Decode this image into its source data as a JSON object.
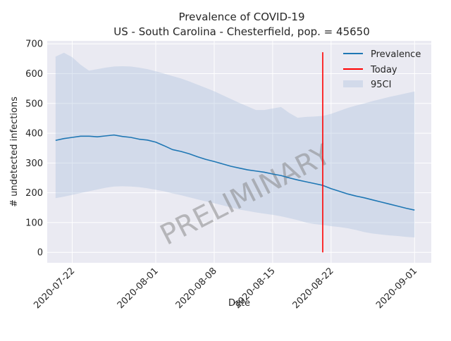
{
  "chart_data": {
    "type": "line",
    "title": "Prevalence of COVID-19",
    "subtitle": "US - South Carolina - Chesterfield, pop. = 45650",
    "xlabel": "Date",
    "ylabel": "# undetected infections",
    "watermark": "PRELIMINARY",
    "xlim": [
      "2020-07-19",
      "2020-09-03"
    ],
    "ylim": [
      -35,
      710
    ],
    "x_ticks": [
      "2020-07-22",
      "2020-08-01",
      "2020-08-08",
      "2020-08-15",
      "2020-08-22",
      "2020-09-01"
    ],
    "y_ticks": [
      0,
      100,
      200,
      300,
      400,
      500,
      600,
      700
    ],
    "grid": true,
    "legend_position": "top-right",
    "series": [
      {
        "name": "Prevalence",
        "color": "#1f77b4",
        "x": [
          "2020-07-20",
          "2020-07-21",
          "2020-07-22",
          "2020-07-23",
          "2020-07-24",
          "2020-07-25",
          "2020-07-26",
          "2020-07-27",
          "2020-07-28",
          "2020-07-29",
          "2020-07-30",
          "2020-07-31",
          "2020-08-01",
          "2020-08-02",
          "2020-08-03",
          "2020-08-04",
          "2020-08-05",
          "2020-08-06",
          "2020-08-07",
          "2020-08-08",
          "2020-08-09",
          "2020-08-10",
          "2020-08-11",
          "2020-08-12",
          "2020-08-13",
          "2020-08-14",
          "2020-08-15",
          "2020-08-16",
          "2020-08-17",
          "2020-08-18",
          "2020-08-19",
          "2020-08-20",
          "2020-08-21",
          "2020-08-22",
          "2020-08-23",
          "2020-08-24",
          "2020-08-25",
          "2020-08-26",
          "2020-08-27",
          "2020-08-28",
          "2020-08-29",
          "2020-08-30",
          "2020-08-31",
          "2020-09-01"
        ],
        "values": [
          376,
          382,
          386,
          390,
          390,
          388,
          391,
          394,
          389,
          386,
          380,
          377,
          370,
          358,
          345,
          339,
          331,
          321,
          312,
          305,
          297,
          289,
          283,
          277,
          273,
          269,
          263,
          258,
          250,
          243,
          237,
          231,
          225,
          214,
          205,
          196,
          189,
          183,
          176,
          169,
          162,
          155,
          148,
          142
        ]
      },
      {
        "name": "Today",
        "color": "#ff0000",
        "x": [
          "2020-08-21",
          "2020-08-21"
        ],
        "values": [
          0,
          672
        ]
      }
    ],
    "ci_band": {
      "name": "95CI",
      "color": "#b0c4de",
      "x": [
        "2020-07-20",
        "2020-07-21",
        "2020-07-22",
        "2020-07-23",
        "2020-07-24",
        "2020-07-25",
        "2020-07-26",
        "2020-07-27",
        "2020-07-28",
        "2020-07-29",
        "2020-07-30",
        "2020-07-31",
        "2020-08-01",
        "2020-08-02",
        "2020-08-03",
        "2020-08-04",
        "2020-08-05",
        "2020-08-06",
        "2020-08-07",
        "2020-08-08",
        "2020-08-09",
        "2020-08-10",
        "2020-08-11",
        "2020-08-12",
        "2020-08-13",
        "2020-08-14",
        "2020-08-15",
        "2020-08-16",
        "2020-08-17",
        "2020-08-18",
        "2020-08-19",
        "2020-08-20",
        "2020-08-21",
        "2020-08-22",
        "2020-08-23",
        "2020-08-24",
        "2020-08-25",
        "2020-08-26",
        "2020-08-27",
        "2020-08-28",
        "2020-08-29",
        "2020-08-30",
        "2020-08-31",
        "2020-09-01"
      ],
      "upper": [
        657,
        670,
        655,
        630,
        610,
        615,
        620,
        624,
        625,
        624,
        620,
        615,
        608,
        600,
        592,
        584,
        574,
        563,
        552,
        541,
        528,
        515,
        502,
        490,
        478,
        478,
        483,
        488,
        468,
        452,
        455,
        456,
        458,
        465,
        475,
        485,
        493,
        500,
        508,
        515,
        522,
        528,
        534,
        540
      ],
      "lower": [
        182,
        187,
        193,
        199,
        205,
        211,
        217,
        221,
        222,
        221,
        219,
        215,
        210,
        205,
        198,
        192,
        185,
        178,
        171,
        165,
        158,
        151,
        144,
        139,
        134,
        130,
        126,
        121,
        115,
        108,
        100,
        95,
        92,
        88,
        85,
        81,
        75,
        68,
        63,
        60,
        57,
        55,
        52,
        50
      ]
    }
  }
}
